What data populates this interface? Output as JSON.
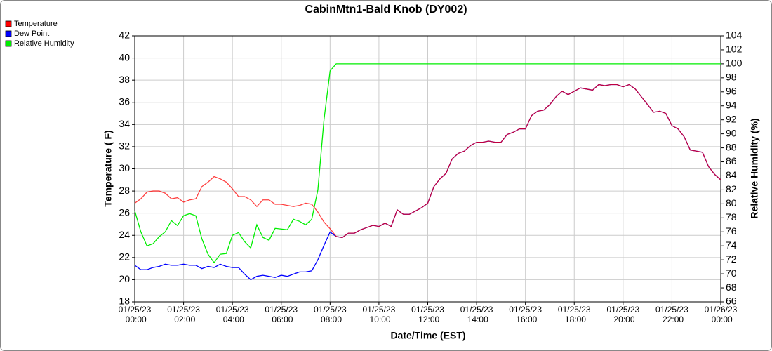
{
  "chart_data": {
    "type": "line",
    "title": "CabinMtn1-Bald Knob (DY002)",
    "x_label": "Date/Time (EST)",
    "y_label": "Temperature ( F)",
    "y2_label": "Relative Humidity (%)",
    "grid": true,
    "legend": "top-left",
    "x": [
      "01/25/23 00:00",
      "01/25/23 00:15",
      "01/25/23 00:30",
      "01/25/23 00:45",
      "01/25/23 01:00",
      "01/25/23 01:15",
      "01/25/23 01:30",
      "01/25/23 01:45",
      "01/25/23 02:00",
      "01/25/23 02:15",
      "01/25/23 02:30",
      "01/25/23 02:45",
      "01/25/23 03:00",
      "01/25/23 03:15",
      "01/25/23 03:30",
      "01/25/23 03:45",
      "01/25/23 04:00",
      "01/25/23 04:15",
      "01/25/23 04:30",
      "01/25/23 04:45",
      "01/25/23 05:00",
      "01/25/23 05:15",
      "01/25/23 05:30",
      "01/25/23 05:45",
      "01/25/23 06:00",
      "01/25/23 06:15",
      "01/25/23 06:30",
      "01/25/23 06:45",
      "01/25/23 07:00",
      "01/25/23 07:15",
      "01/25/23 07:30",
      "01/25/23 07:45",
      "01/25/23 08:00",
      "01/25/23 08:15",
      "01/25/23 08:30",
      "01/25/23 08:45",
      "01/25/23 09:00",
      "01/25/23 09:15",
      "01/25/23 09:30",
      "01/25/23 09:45",
      "01/25/23 10:00",
      "01/25/23 10:15",
      "01/25/23 10:30",
      "01/25/23 10:45",
      "01/25/23 11:00",
      "01/25/23 11:15",
      "01/25/23 11:30",
      "01/25/23 11:45",
      "01/25/23 12:00",
      "01/25/23 12:15",
      "01/25/23 12:30",
      "01/25/23 12:45",
      "01/25/23 13:00",
      "01/25/23 13:15",
      "01/25/23 13:30",
      "01/25/23 13:45",
      "01/25/23 14:00",
      "01/25/23 14:15",
      "01/25/23 14:30",
      "01/25/23 14:45",
      "01/25/23 15:00",
      "01/25/23 15:15",
      "01/25/23 15:30",
      "01/25/23 15:45",
      "01/25/23 16:00",
      "01/25/23 16:15",
      "01/25/23 16:30",
      "01/25/23 16:45",
      "01/25/23 17:00",
      "01/25/23 17:15",
      "01/25/23 17:30",
      "01/25/23 17:45",
      "01/25/23 18:00",
      "01/25/23 18:15",
      "01/25/23 18:30",
      "01/25/23 18:45",
      "01/25/23 19:00",
      "01/25/23 19:15",
      "01/25/23 19:30",
      "01/25/23 19:45",
      "01/25/23 20:00",
      "01/25/23 20:15",
      "01/25/23 20:30",
      "01/25/23 20:45",
      "01/25/23 21:00",
      "01/25/23 21:15",
      "01/25/23 21:30",
      "01/25/23 21:45",
      "01/25/23 22:00",
      "01/25/23 22:15",
      "01/25/23 22:30",
      "01/25/23 22:45",
      "01/25/23 23:00",
      "01/25/23 23:15",
      "01/25/23 23:30",
      "01/25/23 23:45",
      "01/26/23 00:00"
    ],
    "xlim": [
      "01/25/23 00:00",
      "01/26/23 00:00"
    ],
    "xticks": [
      "01/25/23 00:00",
      "01/25/23 02:00",
      "01/25/23 04:00",
      "01/25/23 06:00",
      "01/25/23 08:00",
      "01/25/23 10:00",
      "01/25/23 12:00",
      "01/25/23 14:00",
      "01/25/23 16:00",
      "01/25/23 18:00",
      "01/25/23 20:00",
      "01/25/23 22:00",
      "01/26/23 00:00"
    ],
    "ylim": [
      18,
      42
    ],
    "yticks": [
      18,
      20,
      22,
      24,
      26,
      28,
      30,
      32,
      34,
      36,
      38,
      40,
      42
    ],
    "y2lim": [
      66,
      104
    ],
    "y2ticks": [
      66,
      68,
      70,
      72,
      74,
      76,
      78,
      80,
      82,
      84,
      86,
      88,
      90,
      92,
      94,
      96,
      98,
      100,
      102,
      104
    ],
    "series": [
      {
        "name": "Temperature",
        "color": "#ff0000",
        "values": [
          26.9,
          27.3,
          27.9,
          28.0,
          28.0,
          27.8,
          27.3,
          27.4,
          27.0,
          27.2,
          27.3,
          28.4,
          28.8,
          29.3,
          29.1,
          28.8,
          28.2,
          27.5,
          27.5,
          27.2,
          26.6,
          27.2,
          27.2,
          26.8,
          26.8,
          26.7,
          26.6,
          26.7,
          26.9,
          26.8,
          26.1,
          25.2,
          24.6,
          23.9,
          23.8,
          24.2,
          24.2,
          24.5,
          24.7,
          24.9,
          24.8,
          25.1,
          24.8,
          26.3,
          25.9,
          25.9,
          26.2,
          26.5,
          26.9,
          28.4,
          29.1,
          29.6,
          30.9,
          31.4,
          31.6,
          32.1,
          32.4,
          32.4,
          32.5,
          32.4,
          32.4,
          33.1,
          33.3,
          33.6,
          33.6,
          34.8,
          35.2,
          35.3,
          35.8,
          36.5,
          37.0,
          36.7,
          37.0,
          37.3,
          37.2,
          37.1,
          37.6,
          37.5,
          37.6,
          37.6,
          37.4,
          37.6,
          37.2,
          36.5,
          35.8,
          35.1,
          35.2,
          35.0,
          33.9,
          33.6,
          32.9,
          31.7,
          31.6,
          31.5,
          30.2,
          29.5,
          29.0
        ]
      },
      {
        "name": "Dew Point",
        "color": "#0000ff",
        "values": [
          21.3,
          20.9,
          20.9,
          21.1,
          21.2,
          21.4,
          21.3,
          21.3,
          21.4,
          21.3,
          21.3,
          21.0,
          21.2,
          21.1,
          21.4,
          21.2,
          21.1,
          21.1,
          20.5,
          20.0,
          20.3,
          20.4,
          20.3,
          20.2,
          20.4,
          20.3,
          20.5,
          20.7,
          20.7,
          20.8,
          21.8,
          23.1,
          24.3,
          23.9,
          23.8,
          24.2,
          24.2,
          24.5,
          24.7,
          24.9,
          24.8,
          25.1,
          24.8,
          26.3,
          25.9,
          25.9,
          26.2,
          26.5,
          26.9,
          28.4,
          29.1,
          29.6,
          30.9,
          31.4,
          31.6,
          32.1,
          32.4,
          32.4,
          32.5,
          32.4,
          32.4,
          33.1,
          33.3,
          33.6,
          33.6,
          34.8,
          35.2,
          35.3,
          35.8,
          36.5,
          37.0,
          36.7,
          37.0,
          37.3,
          37.2,
          37.1,
          37.6,
          37.5,
          37.6,
          37.6,
          37.4,
          37.6,
          37.2,
          36.5,
          35.8,
          35.1,
          35.2,
          35.0,
          33.9,
          33.6,
          32.9,
          31.7,
          31.6,
          31.5,
          30.2,
          29.5,
          29.0
        ]
      },
      {
        "name": "Relative Humidity",
        "color": "#00ee00",
        "axis": "y2",
        "values": [
          79.0,
          76.0,
          74.0,
          74.3,
          75.3,
          76.0,
          77.6,
          76.9,
          78.3,
          78.6,
          78.3,
          75.0,
          72.8,
          71.6,
          72.8,
          72.9,
          75.5,
          75.9,
          74.6,
          73.7,
          77.0,
          75.2,
          74.8,
          76.5,
          76.4,
          76.3,
          77.8,
          77.5,
          77.0,
          77.8,
          82.0,
          92.0,
          99.0,
          100,
          100,
          100,
          100,
          100,
          100,
          100,
          100,
          100,
          100,
          100,
          100,
          100,
          100,
          100,
          100,
          100,
          100,
          100,
          100,
          100,
          100,
          100,
          100,
          100,
          100,
          100,
          100,
          100,
          100,
          100,
          100,
          100,
          100,
          100,
          100,
          100,
          100,
          100,
          100,
          100,
          100,
          100,
          100,
          100,
          100,
          100,
          100,
          100,
          100,
          100,
          100,
          100,
          100,
          100,
          100,
          100,
          100,
          100,
          100,
          100,
          100,
          100,
          100
        ]
      }
    ]
  }
}
